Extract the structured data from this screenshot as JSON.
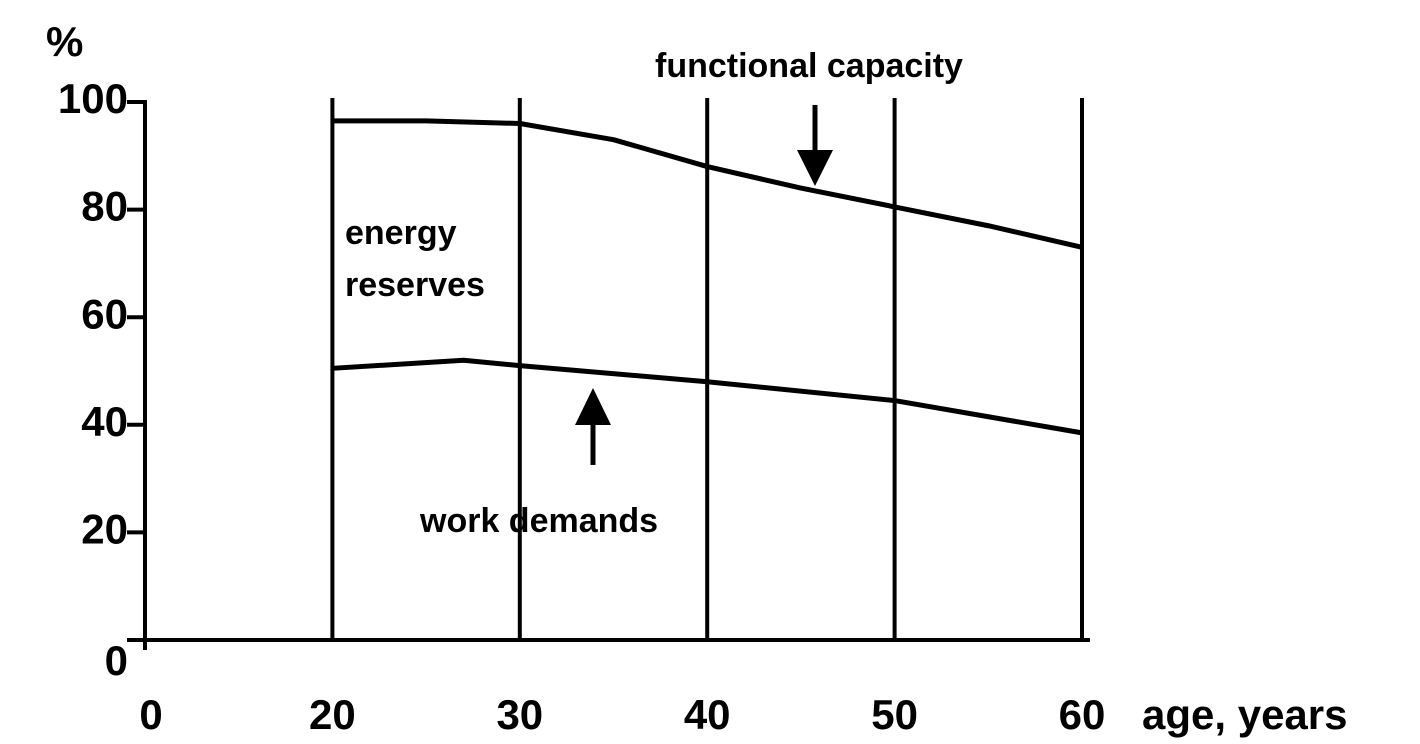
{
  "chart_data": {
    "type": "line",
    "y_label": "%",
    "x_label": "age, years",
    "xticks": [
      0,
      20,
      30,
      40,
      50,
      60
    ],
    "ylim": [
      0,
      100
    ],
    "yticks": [
      0,
      20,
      40,
      60,
      80,
      100
    ],
    "grid": true,
    "series": [
      {
        "name": "functional capacity",
        "color": "#000000",
        "x": [
          20,
          25,
          30,
          35,
          40,
          45,
          50,
          55,
          60
        ],
        "values": [
          96.5,
          96.5,
          96,
          93,
          88,
          84,
          80.5,
          77,
          73
        ]
      },
      {
        "name": "work demands",
        "color": "#000000",
        "x": [
          20,
          27,
          30,
          40,
          50,
          60
        ],
        "values": [
          50.5,
          52,
          51,
          48,
          44.5,
          38.5
        ]
      }
    ],
    "annotations": [
      [
        "energy",
        "reserves"
      ]
    ]
  }
}
